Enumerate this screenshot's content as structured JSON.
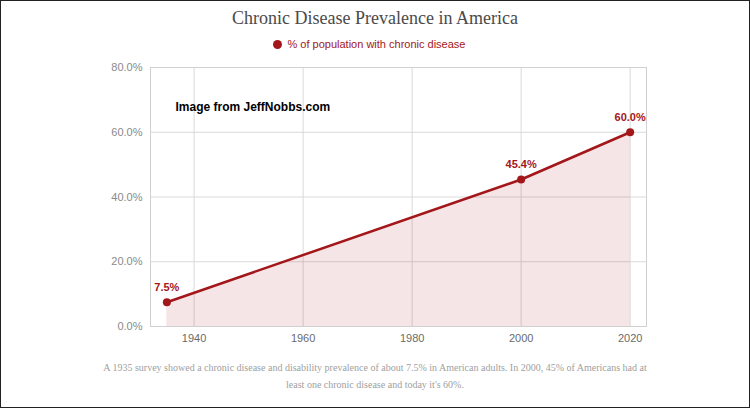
{
  "chart_data": {
    "type": "line",
    "title": "Chronic Disease Prevalence in America",
    "annotation": "Image from JeffNobbs.com",
    "caption": "A 1935 survey showed a chronic disease and disability prevalence of about 7.5% in American adults. In 2000, 45% of Americans had at least one chronic disease and today it's 60%.",
    "x": [
      1935,
      2000,
      2020
    ],
    "series": [
      {
        "name": "% of population with chronic disease",
        "color": "#a3161a",
        "values": [
          7.5,
          45.4,
          60.0
        ],
        "value_labels": [
          "7.5%",
          "45.4%",
          "60.0%"
        ]
      }
    ],
    "xlim": [
      1932,
      2023
    ],
    "xticks": [
      1940,
      1960,
      1980,
      2000,
      2020
    ],
    "ylim": [
      0,
      80
    ],
    "yticks": [
      {
        "value": 0,
        "label": "0.0%"
      },
      {
        "value": 20,
        "label": "20.0%"
      },
      {
        "value": 40,
        "label": "40.0%"
      },
      {
        "value": 60,
        "label": "60.0%"
      },
      {
        "value": 80,
        "label": "80.0%"
      }
    ],
    "grid": true,
    "marker": "circle",
    "data_labels": true,
    "legend": "top"
  }
}
